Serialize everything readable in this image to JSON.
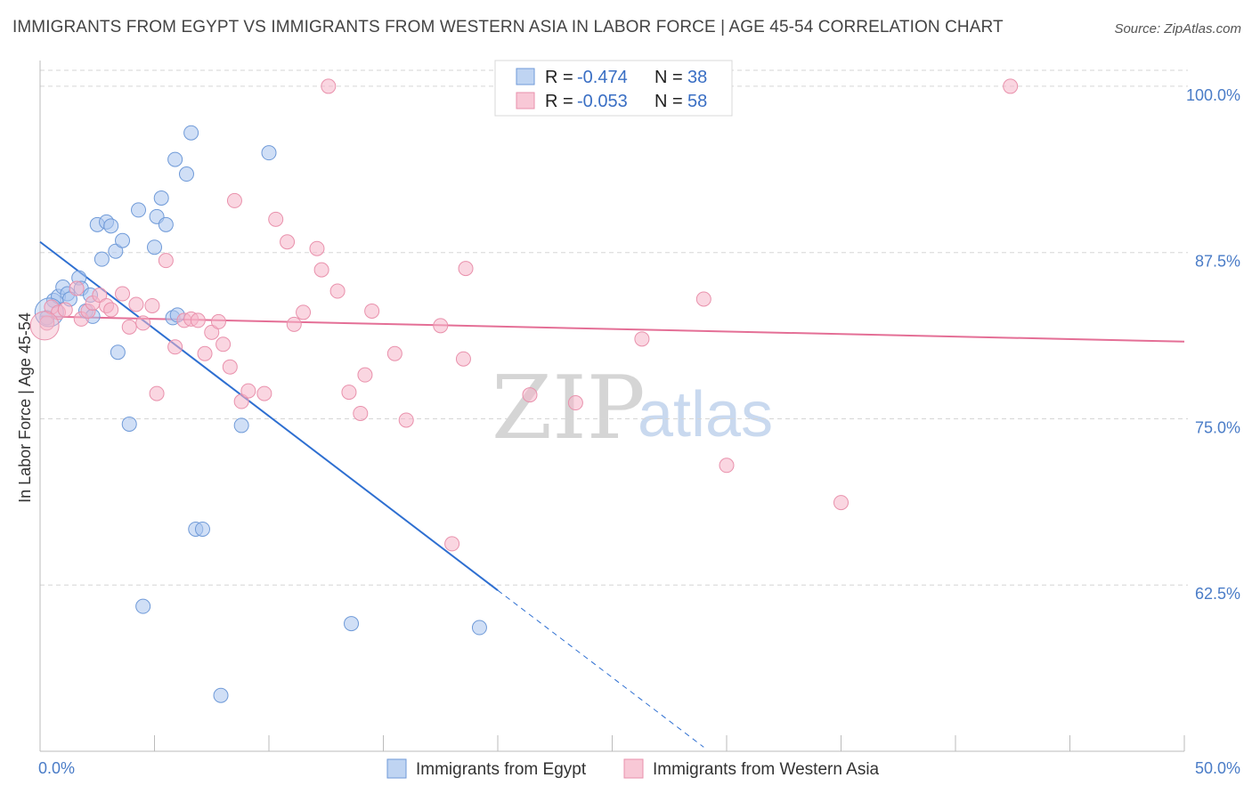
{
  "title": "IMMIGRANTS FROM EGYPT VS IMMIGRANTS FROM WESTERN ASIA IN LABOR FORCE | AGE 45-54 CORRELATION CHART",
  "source": "Source: ZipAtlas.com",
  "watermark": {
    "zip": "ZIP",
    "atlas": "atlas"
  },
  "legend": {
    "rows": [
      {
        "r_label": "R =",
        "r_value": "-0.474",
        "n_label": "N =",
        "n_value": "38",
        "color": "#a9c5ee"
      },
      {
        "r_label": "R =",
        "r_value": "-0.053",
        "n_label": "N =",
        "n_value": "58",
        "color": "#f5b5c8"
      }
    ]
  },
  "bottom_legend": [
    {
      "label": "Immigrants from Egypt",
      "color": "#a9c5ee"
    },
    {
      "label": "Immigrants from Western Asia",
      "color": "#f5b5c8"
    }
  ],
  "chart_data": {
    "type": "scatter",
    "title": "IMMIGRANTS FROM EGYPT VS IMMIGRANTS FROM WESTERN ASIA IN LABOR FORCE | AGE 45-54 CORRELATION CHART",
    "xlabel": "",
    "ylabel": "In Labor Force | Age 45-54",
    "xlim": [
      0,
      50
    ],
    "ylim": [
      50,
      101.2
    ],
    "x_tick_labels": [
      "0.0%",
      "50.0%"
    ],
    "y_ticks": [
      62.5,
      75.0,
      87.5,
      100.0
    ],
    "y_tick_labels": [
      "62.5%",
      "75.0%",
      "87.5%",
      "100.0%"
    ],
    "grid": "horizontal dashed",
    "series": [
      {
        "name": "Immigrants from Egypt",
        "color": "#a9c5ee",
        "edge": "#6f9ad8",
        "trend": {
          "x0": 0,
          "y0": 88.3,
          "x1": 20,
          "y1": 62.1,
          "dashed_to_x": 29,
          "line_color": "#2e6fd1"
        },
        "points": [
          [
            0.3,
            82.6
          ],
          [
            0.6,
            83.9
          ],
          [
            0.8,
            84.2
          ],
          [
            1.0,
            84.9
          ],
          [
            1.2,
            84.4
          ],
          [
            1.3,
            84.0
          ],
          [
            1.7,
            85.6
          ],
          [
            1.8,
            84.8
          ],
          [
            2.0,
            83.1
          ],
          [
            2.2,
            84.3
          ],
          [
            2.3,
            82.7
          ],
          [
            2.5,
            89.6
          ],
          [
            2.7,
            87.0
          ],
          [
            2.9,
            89.8
          ],
          [
            3.1,
            89.5
          ],
          [
            3.3,
            87.6
          ],
          [
            3.6,
            88.4
          ],
          [
            4.3,
            90.7
          ],
          [
            5.0,
            87.9
          ],
          [
            5.1,
            90.2
          ],
          [
            5.3,
            91.6
          ],
          [
            5.5,
            89.6
          ],
          [
            5.9,
            94.5
          ],
          [
            6.4,
            93.4
          ],
          [
            6.6,
            96.5
          ],
          [
            3.4,
            80.0
          ],
          [
            3.9,
            74.6
          ],
          [
            4.5,
            60.9
          ],
          [
            5.8,
            82.6
          ],
          [
            6.0,
            82.8
          ],
          [
            6.8,
            66.7
          ],
          [
            7.1,
            66.7
          ],
          [
            7.9,
            54.2
          ],
          [
            8.8,
            74.5
          ],
          [
            10.0,
            95.0
          ],
          [
            13.6,
            59.6
          ],
          [
            19.2,
            59.3
          ],
          [
            0.4,
            83.0
          ]
        ]
      },
      {
        "name": "Immigrants from Western Asia",
        "color": "#f5b5c8",
        "edge": "#e991ac",
        "trend": {
          "x0": 0,
          "y0": 82.7,
          "x1": 50,
          "y1": 80.8,
          "line_color": "#e46f96"
        },
        "points": [
          [
            0.3,
            82.2
          ],
          [
            0.5,
            83.4
          ],
          [
            0.8,
            83.0
          ],
          [
            1.1,
            83.2
          ],
          [
            1.6,
            84.8
          ],
          [
            1.8,
            82.5
          ],
          [
            2.1,
            83.1
          ],
          [
            2.3,
            83.7
          ],
          [
            2.6,
            84.3
          ],
          [
            2.9,
            83.5
          ],
          [
            3.1,
            83.2
          ],
          [
            3.6,
            84.4
          ],
          [
            3.9,
            81.9
          ],
          [
            4.2,
            83.6
          ],
          [
            4.5,
            82.2
          ],
          [
            4.9,
            83.5
          ],
          [
            5.1,
            76.9
          ],
          [
            5.5,
            86.9
          ],
          [
            5.9,
            80.4
          ],
          [
            6.3,
            82.4
          ],
          [
            6.6,
            82.5
          ],
          [
            6.9,
            82.4
          ],
          [
            7.2,
            79.9
          ],
          [
            7.5,
            81.5
          ],
          [
            7.8,
            82.3
          ],
          [
            8.0,
            80.6
          ],
          [
            8.3,
            78.9
          ],
          [
            8.5,
            91.4
          ],
          [
            8.8,
            76.3
          ],
          [
            9.1,
            77.1
          ],
          [
            9.8,
            76.9
          ],
          [
            10.3,
            90.0
          ],
          [
            10.8,
            88.3
          ],
          [
            11.1,
            82.1
          ],
          [
            11.5,
            83.0
          ],
          [
            12.1,
            87.8
          ],
          [
            12.3,
            86.2
          ],
          [
            12.6,
            100.0
          ],
          [
            13.0,
            84.6
          ],
          [
            13.5,
            77.0
          ],
          [
            14.0,
            75.4
          ],
          [
            14.2,
            78.3
          ],
          [
            14.5,
            83.1
          ],
          [
            15.5,
            79.9
          ],
          [
            16.0,
            74.9
          ],
          [
            17.5,
            82.0
          ],
          [
            18.0,
            65.6
          ],
          [
            18.5,
            79.5
          ],
          [
            18.6,
            86.3
          ],
          [
            20.5,
            100.0
          ],
          [
            21.4,
            76.8
          ],
          [
            23.4,
            76.2
          ],
          [
            26.3,
            81.0
          ],
          [
            29.0,
            84.0
          ],
          [
            30.0,
            71.5
          ],
          [
            35.0,
            68.7
          ],
          [
            42.4,
            100.0
          ],
          [
            0.2,
            82.0
          ]
        ]
      }
    ]
  }
}
